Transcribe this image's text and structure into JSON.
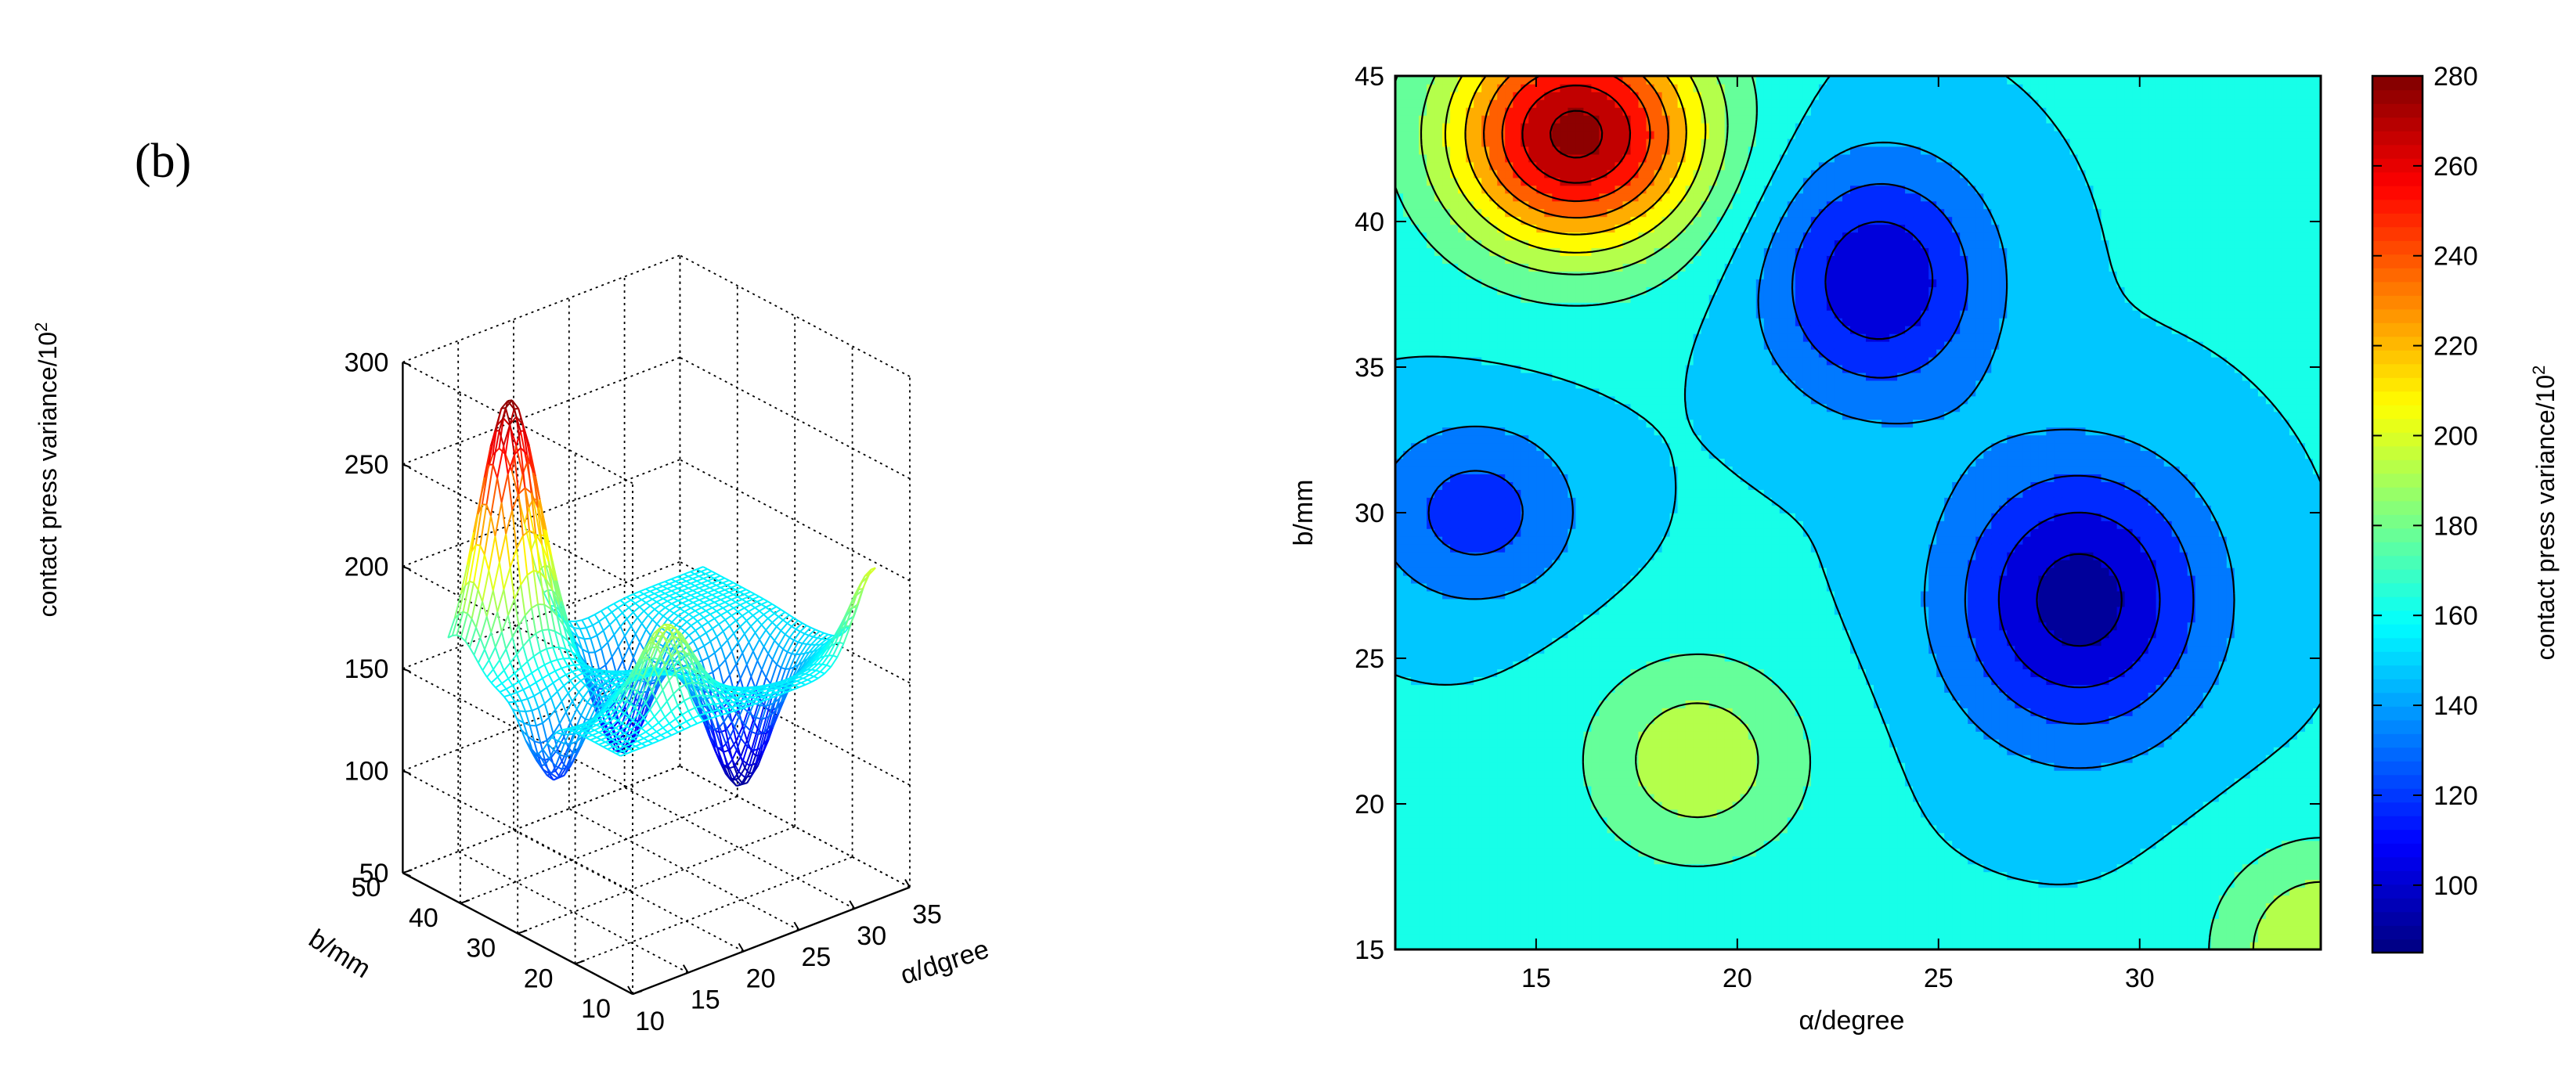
{
  "panel_label": "(b)",
  "chart_data": [
    {
      "type": "surface",
      "xlabel": "α/dgree",
      "ylabel": "b/mm",
      "zlabel": "contact press variance/10",
      "zlabel_sup": "2",
      "xlim": [
        10,
        35
      ],
      "ylim": [
        10,
        50
      ],
      "zlim": [
        50,
        300
      ],
      "xticks": [
        10,
        15,
        20,
        25,
        30,
        35
      ],
      "yticks": [
        10,
        20,
        30,
        40,
        50
      ],
      "zticks": [
        50,
        100,
        150,
        200,
        250,
        300
      ],
      "grid": true,
      "colormap": "jet",
      "mesh_x_range": [
        11.5,
        34.5
      ],
      "mesh_y_range": [
        15,
        45
      ],
      "features": [
        {
          "alpha": 16,
          "b": 43,
          "z": 280
        },
        {
          "alpha": 23.5,
          "b": 38,
          "z": 98
        },
        {
          "alpha": 28.5,
          "b": 27,
          "z": 88
        },
        {
          "alpha": 13.5,
          "b": 30,
          "z": 118
        },
        {
          "alpha": 19,
          "b": 21.5,
          "z": 195
        },
        {
          "alpha": 34.5,
          "b": 15,
          "z": 200
        }
      ]
    },
    {
      "type": "filled-contour",
      "xlabel": "α/degree",
      "ylabel": "b/mm",
      "colorbar_label": "contact press variance/10",
      "colorbar_label_sup": "2",
      "xlim": [
        11.5,
        34.5
      ],
      "ylim": [
        15,
        45
      ],
      "xticks": [
        15,
        20,
        25,
        30
      ],
      "yticks": [
        15,
        20,
        25,
        30,
        35,
        40,
        45
      ],
      "clim": [
        85,
        280
      ],
      "colorbar_ticks": [
        100,
        120,
        140,
        160,
        180,
        200,
        220,
        240,
        260,
        280
      ],
      "contour_levels": [
        95,
        110,
        125,
        140,
        155,
        170,
        185,
        200,
        215,
        230,
        245,
        260,
        275
      ],
      "colormap": "jet"
    }
  ]
}
